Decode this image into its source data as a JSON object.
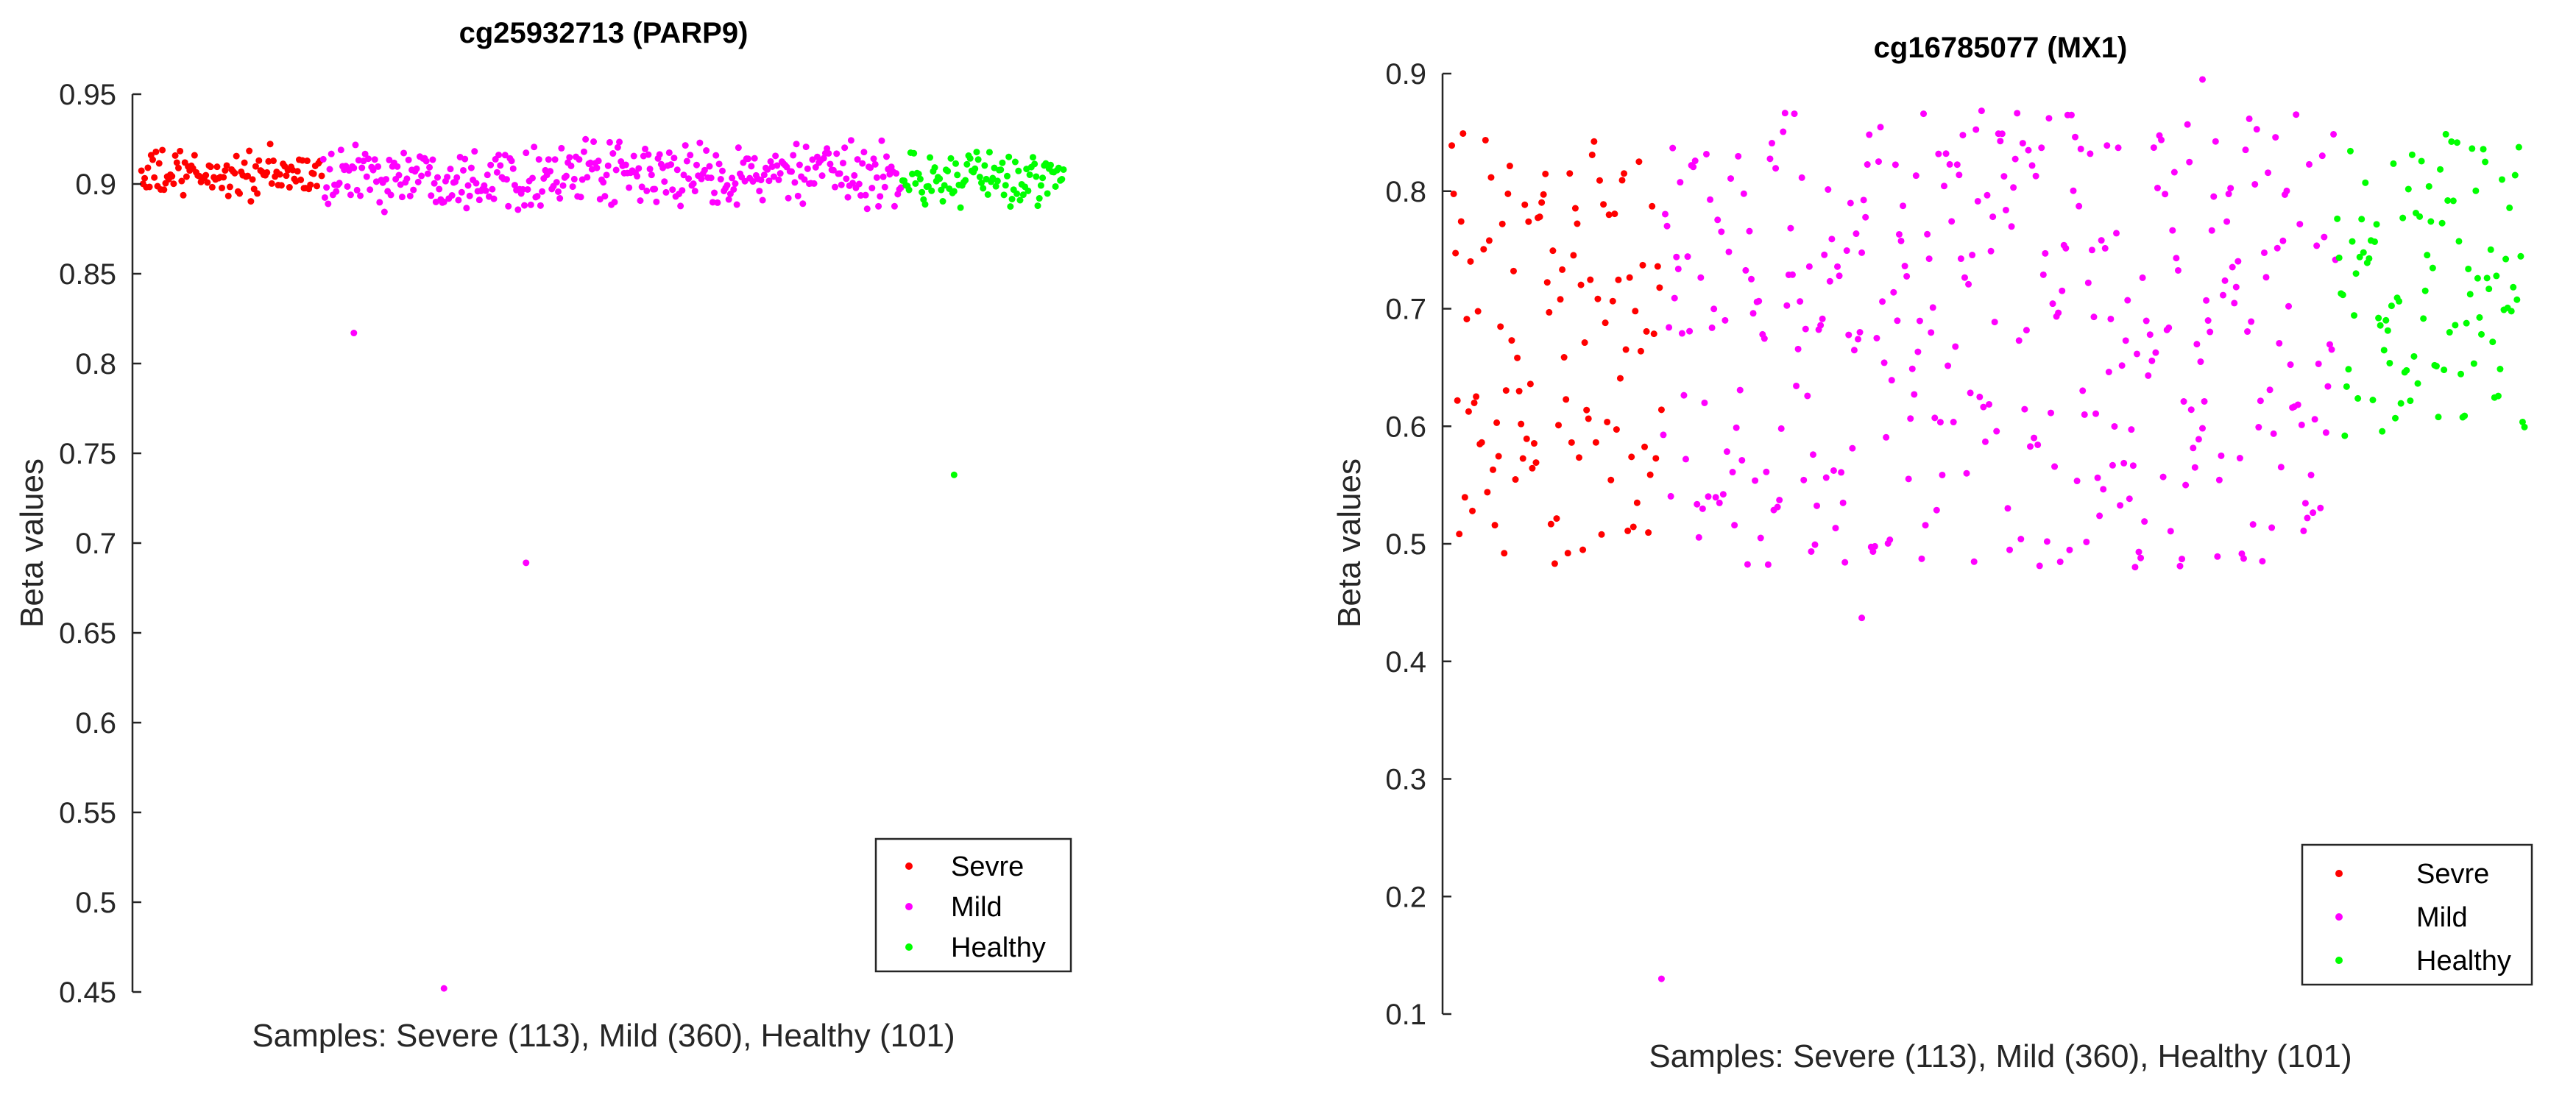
{
  "chart_data": [
    {
      "type": "scatter",
      "title": "cg25932713 (PARP9)",
      "xlabel": "Samples: Severe (113), Mild (360), Healthy (101)",
      "ylabel": "Beta values",
      "ylim": [
        0.45,
        0.95
      ],
      "yticks": [
        "0.45",
        "0.5",
        "0.55",
        "0.6",
        "0.65",
        "0.7",
        "0.75",
        "0.8",
        "0.85",
        "0.9",
        "0.95"
      ],
      "ytick_values": [
        0.45,
        0.5,
        0.55,
        0.6,
        0.65,
        0.7,
        0.75,
        0.8,
        0.85,
        0.9,
        0.95
      ],
      "xlim": [
        0,
        574
      ],
      "legend_position": "bottom-right",
      "series": [
        {
          "name": "Sevre",
          "color": "#ff0000",
          "count": 113,
          "typical_range": [
            0.885,
            0.925
          ],
          "x_start": 1
        },
        {
          "name": "Mild",
          "color": "#ff00ff",
          "count": 360,
          "typical_range": [
            0.88,
            0.93
          ],
          "x_start": 114,
          "outliers": [
            [
              133,
              0.817
            ],
            [
              189,
              0.452
            ],
            [
              240,
              0.689
            ]
          ]
        },
        {
          "name": "Healthy",
          "color": "#00ff00",
          "count": 101,
          "typical_range": [
            0.88,
            0.925
          ],
          "x_start": 474,
          "outliers": [
            [
              506,
              0.738
            ]
          ]
        }
      ]
    },
    {
      "type": "scatter",
      "title": "cg16785077 (MX1)",
      "xlabel": "Samples: Severe (113), Mild (360), Healthy (101)",
      "ylabel": "Beta values",
      "ylim": [
        0.1,
        0.9
      ],
      "yticks": [
        "0.1",
        "0.2",
        "0.3",
        "0.4",
        "0.5",
        "0.6",
        "0.7",
        "0.8",
        "0.9"
      ],
      "ytick_values": [
        0.1,
        0.2,
        0.3,
        0.4,
        0.5,
        0.6,
        0.7,
        0.8,
        0.9
      ],
      "xlim": [
        0,
        574
      ],
      "legend_position": "bottom-right",
      "series": [
        {
          "name": "Sevre",
          "color": "#ff0000",
          "count": 113,
          "typical_range": [
            0.48,
            0.85
          ],
          "x_start": 1
        },
        {
          "name": "Mild",
          "color": "#ff00ff",
          "count": 360,
          "typical_range": [
            0.48,
            0.87
          ],
          "x_start": 114,
          "outliers": [
            [
              113,
              0.13
            ],
            [
              220,
              0.437
            ],
            [
              402,
              0.895
            ]
          ]
        },
        {
          "name": "Healthy",
          "color": "#00ff00",
          "count": 101,
          "typical_range": [
            0.59,
            0.85
          ],
          "x_start": 474
        }
      ]
    }
  ]
}
